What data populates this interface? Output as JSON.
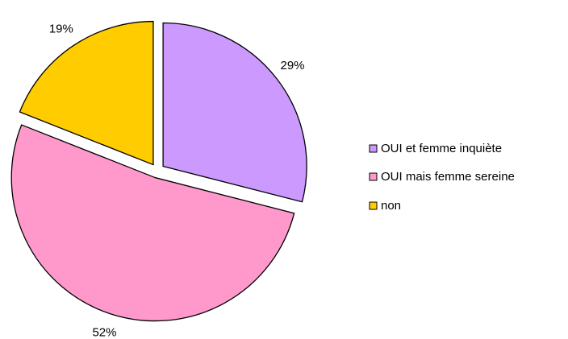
{
  "chart_data": {
    "type": "pie",
    "categories": [
      "OUI et femme inquiète",
      "OUI mais femme sereine",
      "non"
    ],
    "values": [
      29,
      52,
      19
    ],
    "value_labels": [
      "29%",
      "52%",
      "19%"
    ],
    "colors": [
      "#CC99FF",
      "#FF99CC",
      "#FFCC00"
    ],
    "legend": "right"
  }
}
